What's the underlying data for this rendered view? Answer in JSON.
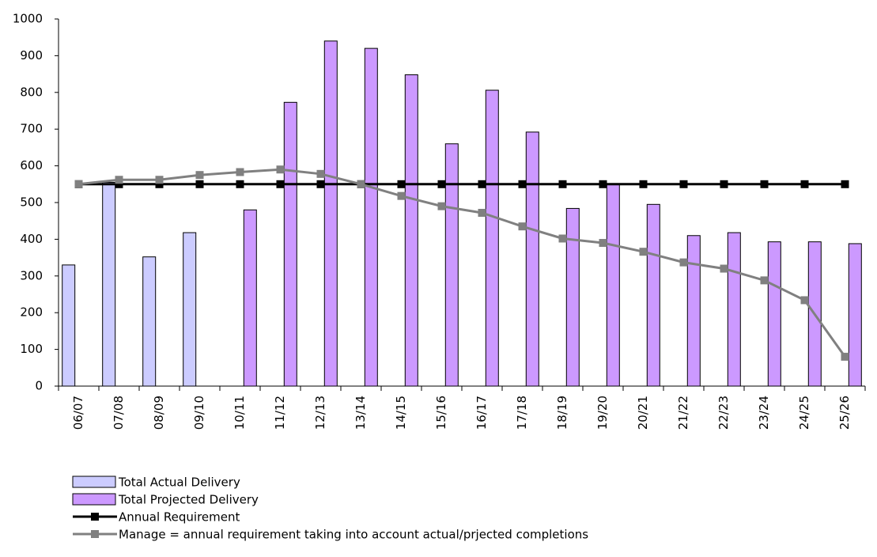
{
  "chart_data": {
    "type": "bar",
    "categories": [
      "06/07",
      "07/08",
      "08/09",
      "09/10",
      "10/11",
      "11/12",
      "12/13",
      "13/14",
      "14/15",
      "15/16",
      "16/17",
      "17/18",
      "18/19",
      "19/20",
      "20/21",
      "21/22",
      "22/23",
      "23/24",
      "24/25",
      "25/26"
    ],
    "series": [
      {
        "name": "Total Actual Delivery",
        "type": "bar",
        "color": "#ccccff",
        "values": [
          330,
          555,
          352,
          418,
          null,
          null,
          null,
          null,
          null,
          null,
          null,
          null,
          null,
          null,
          null,
          null,
          null,
          null,
          null,
          null
        ]
      },
      {
        "name": "Total Projected Delivery",
        "type": "bar",
        "color": "#cc99ff",
        "values": [
          null,
          null,
          null,
          null,
          480,
          773,
          940,
          920,
          848,
          660,
          806,
          692,
          484,
          550,
          495,
          410,
          418,
          393,
          393,
          388
        ]
      },
      {
        "name": "Annual Requirement",
        "type": "line",
        "color": "#000000",
        "values": [
          550,
          550,
          550,
          550,
          550,
          550,
          550,
          550,
          550,
          550,
          550,
          550,
          550,
          550,
          550,
          550,
          550,
          550,
          550,
          550
        ]
      },
      {
        "name": "Manage = annual requirement taking into account actual/prjected completions",
        "type": "line",
        "color": "#808080",
        "values": [
          550,
          562,
          562,
          575,
          583,
          590,
          578,
          550,
          518,
          490,
          472,
          435,
          402,
          390,
          366,
          337,
          320,
          288,
          234,
          80
        ]
      }
    ],
    "ylim": [
      0,
      1000
    ],
    "yticks": [
      0,
      100,
      200,
      300,
      400,
      500,
      600,
      700,
      800,
      900,
      1000
    ]
  }
}
